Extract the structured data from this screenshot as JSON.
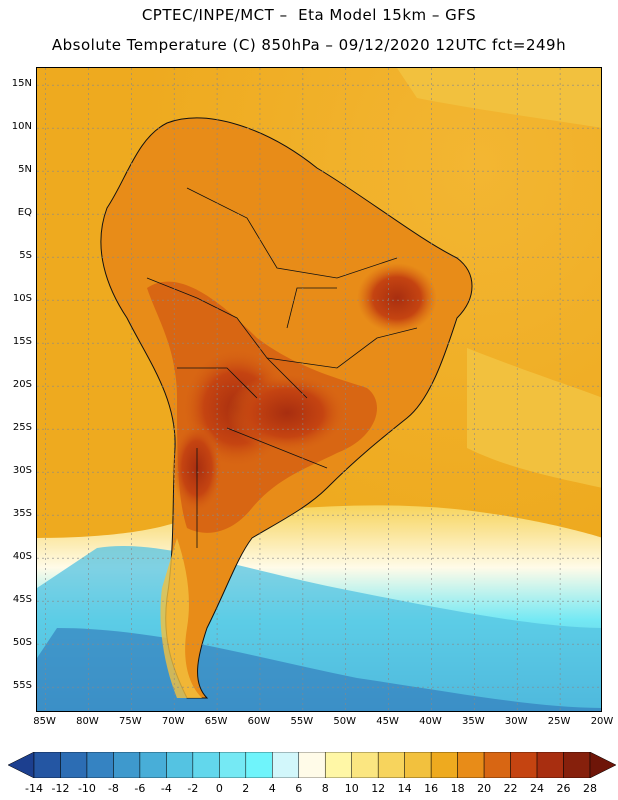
{
  "header": {
    "line1": "CPTEC/INPE/MCT –  Eta Model 15km – GFS",
    "line2": "Absolute Temperature (C) 850hPa – 09/12/2020 12UTC fct=249h"
  },
  "map": {
    "lat_labels": [
      "15N",
      "10N",
      "5N",
      "EQ",
      "5S",
      "10S",
      "15S",
      "20S",
      "25S",
      "30S",
      "35S",
      "40S",
      "45S",
      "50S",
      "55S"
    ],
    "lon_labels": [
      "85W",
      "80W",
      "75W",
      "70W",
      "65W",
      "60W",
      "55W",
      "50W",
      "45W",
      "40W",
      "35W",
      "30W",
      "25W",
      "20W"
    ],
    "lat_range": [
      17,
      -58
    ],
    "lon_range": [
      -86,
      -20
    ]
  },
  "colorbar": {
    "labels": [
      "-14",
      "-12",
      "-10",
      "-8",
      "-6",
      "-4",
      "-2",
      "0",
      "2",
      "4",
      "6",
      "8",
      "10",
      "12",
      "14",
      "16",
      "18",
      "20",
      "22",
      "24",
      "26",
      "28"
    ],
    "colors": [
      "#1c3f8f",
      "#2456a3",
      "#2c6db4",
      "#3583c2",
      "#3e99cd",
      "#48aed8",
      "#54c3e2",
      "#62d7ec",
      "#75e9f4",
      "#6ff4fb",
      "#d2f7fb",
      "#fffbe8",
      "#fff7a6",
      "#fbe681",
      "#f7d45d",
      "#f2c13e",
      "#eeaa1f",
      "#e88c18",
      "#d86613",
      "#c54411",
      "#a82e10",
      "#86200c",
      "#6e1508"
    ]
  }
}
